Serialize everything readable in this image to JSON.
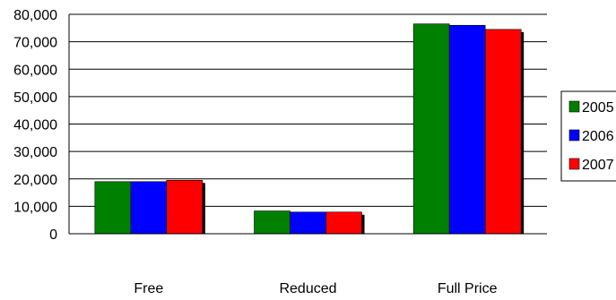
{
  "chart_data": {
    "type": "bar",
    "categories": [
      "Free",
      "Reduced",
      "Full Price"
    ],
    "series": [
      {
        "name": "2005",
        "color": "#008000",
        "values": [
          19000,
          8300,
          76500
        ]
      },
      {
        "name": "2006",
        "color": "#0000ff",
        "values": [
          19000,
          7900,
          76000
        ]
      },
      {
        "name": "2007",
        "color": "#ff0000",
        "values": [
          19500,
          7900,
          74500
        ]
      }
    ],
    "yticks": [
      "0",
      "10,000",
      "20,000",
      "30,000",
      "40,000",
      "50,000",
      "60,000",
      "70,000",
      "80,000"
    ],
    "ylim": [
      0,
      80000
    ],
    "grid": true,
    "legend_position": "right",
    "title": "",
    "xlabel": "",
    "ylabel": ""
  }
}
